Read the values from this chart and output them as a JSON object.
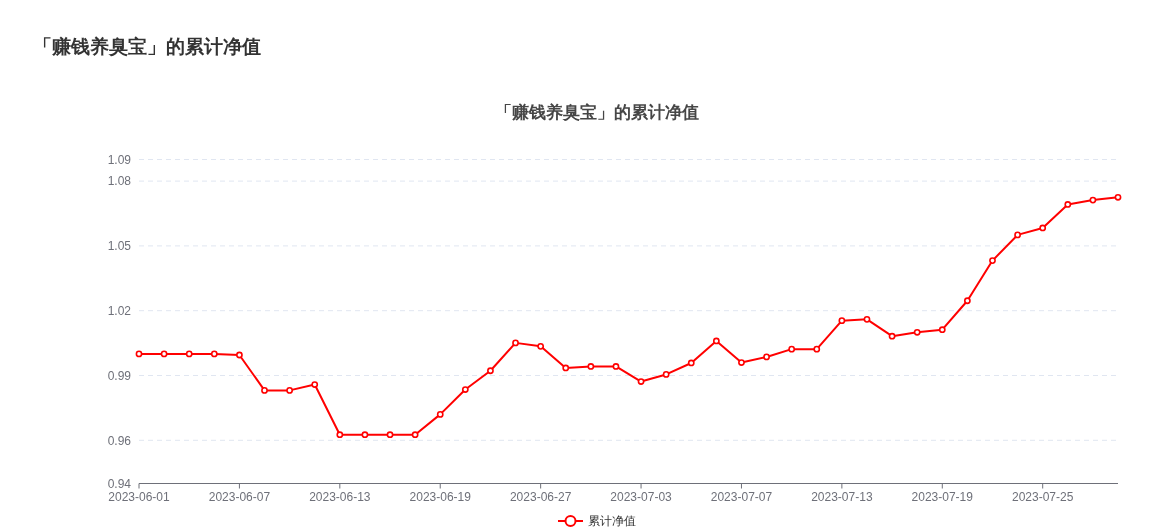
{
  "chart_data": {
    "type": "line",
    "title": "「赚钱养臭宝」的累计净值",
    "subtitle": "「赚钱养臭宝」的累计净值",
    "categories": [
      "2023-06-01",
      null,
      null,
      null,
      "2023-06-07",
      null,
      null,
      null,
      "2023-06-13",
      null,
      null,
      null,
      "2023-06-19",
      null,
      null,
      null,
      "2023-06-27",
      null,
      null,
      null,
      "2023-07-03",
      null,
      null,
      null,
      "2023-07-07",
      null,
      null,
      null,
      "2023-07-13",
      null,
      null,
      null,
      "2023-07-19",
      null,
      null,
      null,
      "2023-07-25",
      null,
      null,
      null
    ],
    "series": [
      {
        "name": "累计净值",
        "color": "#ff0000",
        "values": [
          1.0,
          1.0,
          1.0,
          1.0,
          0.9995,
          0.9831,
          0.9831,
          0.9858,
          0.9626,
          0.9626,
          0.9626,
          0.9626,
          0.972,
          0.9835,
          0.9922,
          1.0051,
          1.0035,
          0.9935,
          0.9942,
          0.9942,
          0.9872,
          0.9905,
          0.9958,
          1.006,
          0.996,
          0.9986,
          1.0022,
          1.0022,
          1.0154,
          1.016,
          1.0082,
          1.01,
          1.0112,
          1.0246,
          1.0432,
          1.0551,
          1.0583,
          1.0692,
          1.0712,
          1.0725
        ]
      }
    ],
    "ylim": [
      0.94,
      1.09
    ],
    "yticks": [
      0.94,
      0.96,
      0.99,
      1.02,
      1.05,
      1.08,
      1.09
    ],
    "grid": "y",
    "legend": "bottom",
    "marker": "circle",
    "line_style": "solid"
  }
}
